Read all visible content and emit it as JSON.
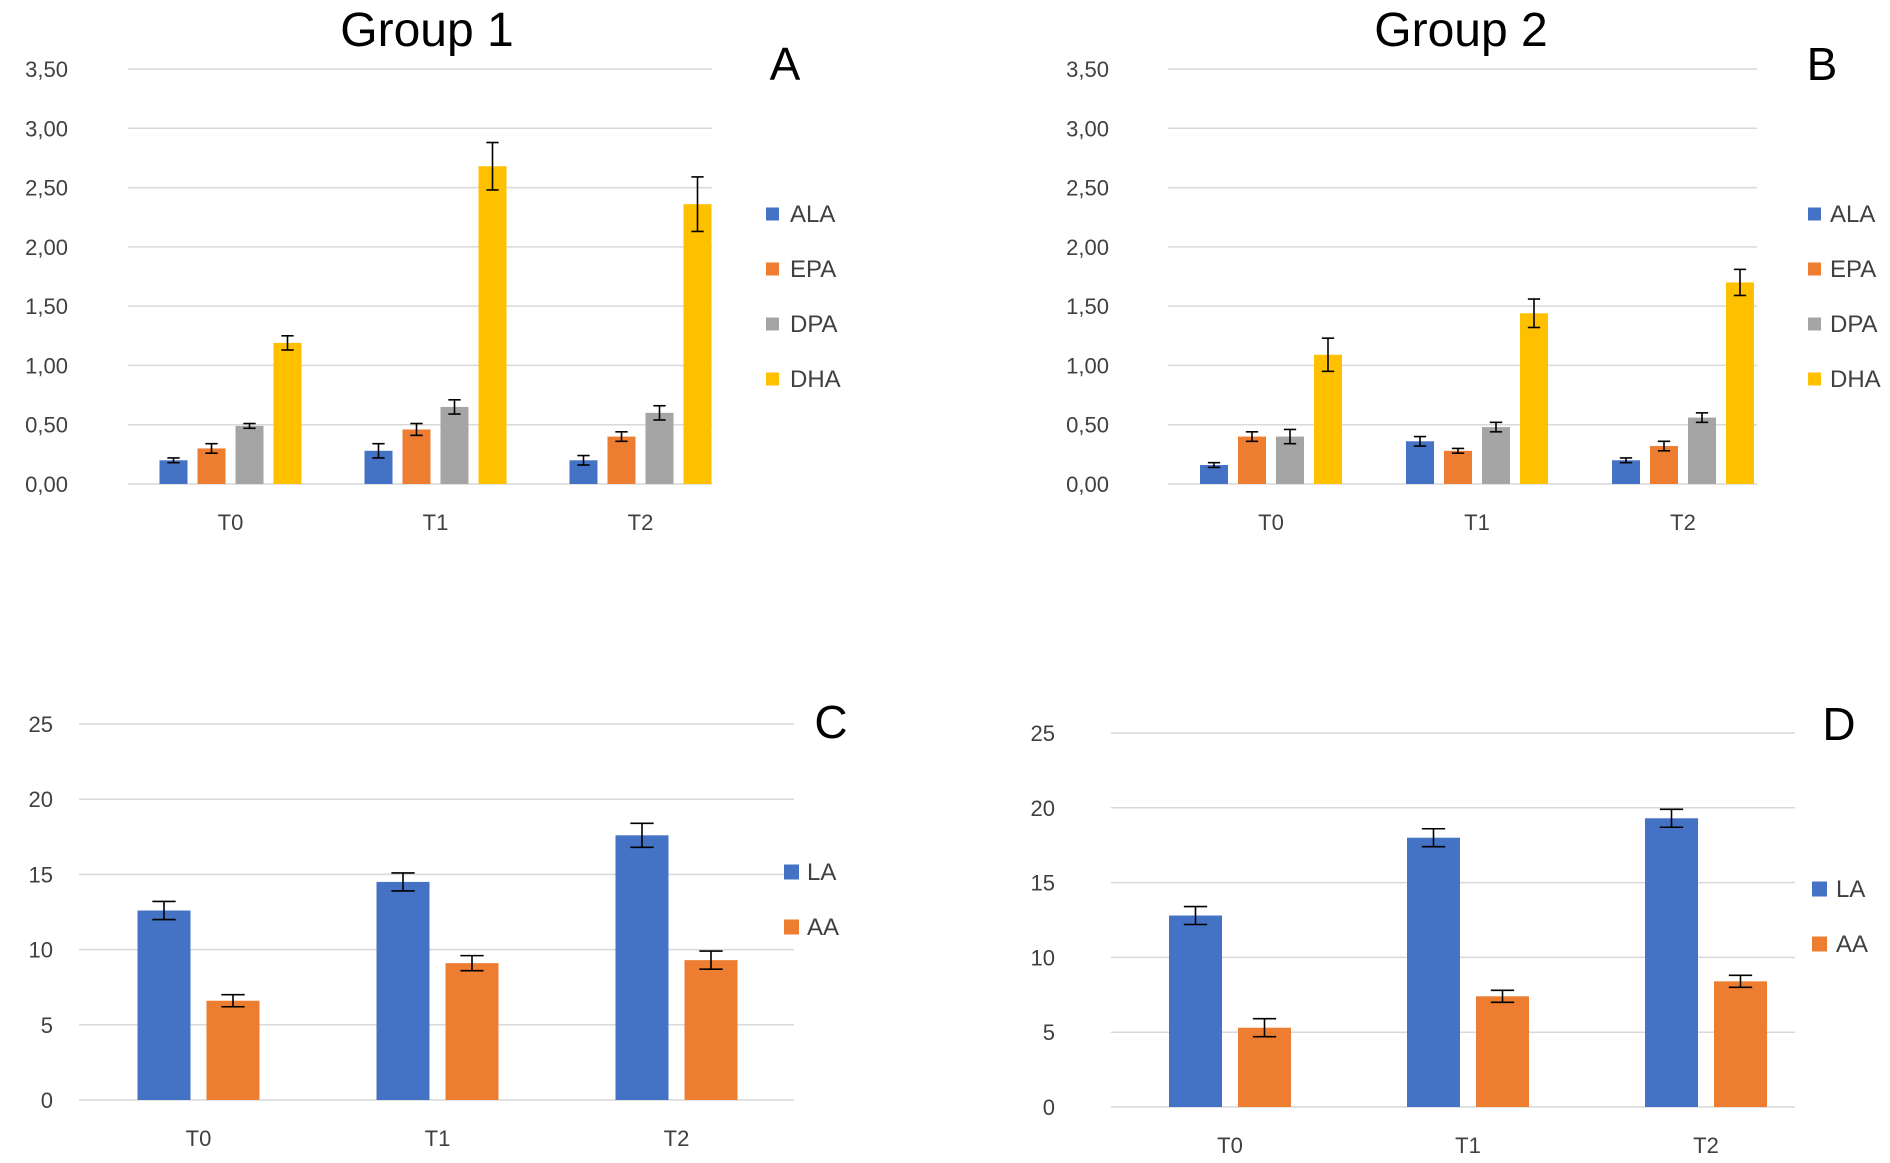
{
  "colors": {
    "ALA": "#4472C4",
    "EPA": "#ED7D31",
    "DPA": "#A5A5A5",
    "DHA": "#FFC000",
    "LA": "#4472C4",
    "AA": "#ED7D31",
    "grid": "#D9D9D9",
    "tick_text": "#404040"
  },
  "chart_data": [
    {
      "id": "A",
      "panel_label": "A",
      "title": "Group 1",
      "type": "bar",
      "categories": [
        "T0",
        "T1",
        "T2"
      ],
      "ylim": [
        0,
        3.5
      ],
      "yticks": [
        "0,00",
        "0,50",
        "1,00",
        "1,50",
        "2,00",
        "2,50",
        "3,00",
        "3,50"
      ],
      "ytick_values": [
        0,
        0.5,
        1,
        1.5,
        2,
        2.5,
        3,
        3.5
      ],
      "legend_position": "right",
      "series": [
        {
          "name": "ALA",
          "values": [
            0.2,
            0.28,
            0.2
          ],
          "errors": [
            0.02,
            0.06,
            0.04
          ]
        },
        {
          "name": "EPA",
          "values": [
            0.3,
            0.46,
            0.4
          ],
          "errors": [
            0.04,
            0.05,
            0.04
          ]
        },
        {
          "name": "DPA",
          "values": [
            0.49,
            0.65,
            0.6
          ],
          "errors": [
            0.02,
            0.06,
            0.06
          ]
        },
        {
          "name": "DHA",
          "values": [
            1.19,
            2.68,
            2.36
          ],
          "errors": [
            0.06,
            0.2,
            0.23
          ]
        }
      ]
    },
    {
      "id": "B",
      "panel_label": "B",
      "title": "Group 2",
      "type": "bar",
      "categories": [
        "T0",
        "T1",
        "T2"
      ],
      "ylim": [
        0,
        3.5
      ],
      "yticks": [
        "0,00",
        "0,50",
        "1,00",
        "1,50",
        "2,00",
        "2,50",
        "3,00",
        "3,50"
      ],
      "ytick_values": [
        0,
        0.5,
        1,
        1.5,
        2,
        2.5,
        3,
        3.5
      ],
      "legend_position": "right",
      "series": [
        {
          "name": "ALA",
          "values": [
            0.16,
            0.36,
            0.2
          ],
          "errors": [
            0.02,
            0.04,
            0.02
          ]
        },
        {
          "name": "EPA",
          "values": [
            0.4,
            0.28,
            0.32
          ],
          "errors": [
            0.04,
            0.02,
            0.04
          ]
        },
        {
          "name": "DPA",
          "values": [
            0.4,
            0.48,
            0.56
          ],
          "errors": [
            0.06,
            0.04,
            0.04
          ]
        },
        {
          "name": "DHA",
          "values": [
            1.09,
            1.44,
            1.7
          ],
          "errors": [
            0.14,
            0.12,
            0.11
          ]
        }
      ]
    },
    {
      "id": "C",
      "panel_label": "C",
      "title": "",
      "type": "bar",
      "categories": [
        "T0",
        "T1",
        "T2"
      ],
      "ylim": [
        0,
        25
      ],
      "yticks": [
        "0",
        "5",
        "10",
        "15",
        "20",
        "25"
      ],
      "ytick_values": [
        0,
        5,
        10,
        15,
        20,
        25
      ],
      "legend_position": "right",
      "series": [
        {
          "name": "LA",
          "values": [
            12.6,
            14.5,
            17.6
          ],
          "errors": [
            0.6,
            0.6,
            0.8
          ]
        },
        {
          "name": "AA",
          "values": [
            6.6,
            9.1,
            9.3
          ],
          "errors": [
            0.4,
            0.5,
            0.6
          ]
        }
      ]
    },
    {
      "id": "D",
      "panel_label": "D",
      "title": "",
      "type": "bar",
      "categories": [
        "T0",
        "T1",
        "T2"
      ],
      "ylim": [
        0,
        25
      ],
      "yticks": [
        "0",
        "5",
        "10",
        "15",
        "20",
        "25"
      ],
      "ytick_values": [
        0,
        5,
        10,
        15,
        20,
        25
      ],
      "legend_position": "right",
      "series": [
        {
          "name": "LA",
          "values": [
            12.8,
            18.0,
            19.3
          ],
          "errors": [
            0.6,
            0.6,
            0.6
          ]
        },
        {
          "name": "AA",
          "values": [
            5.3,
            7.4,
            8.4
          ],
          "errors": [
            0.6,
            0.4,
            0.4
          ]
        }
      ]
    }
  ]
}
